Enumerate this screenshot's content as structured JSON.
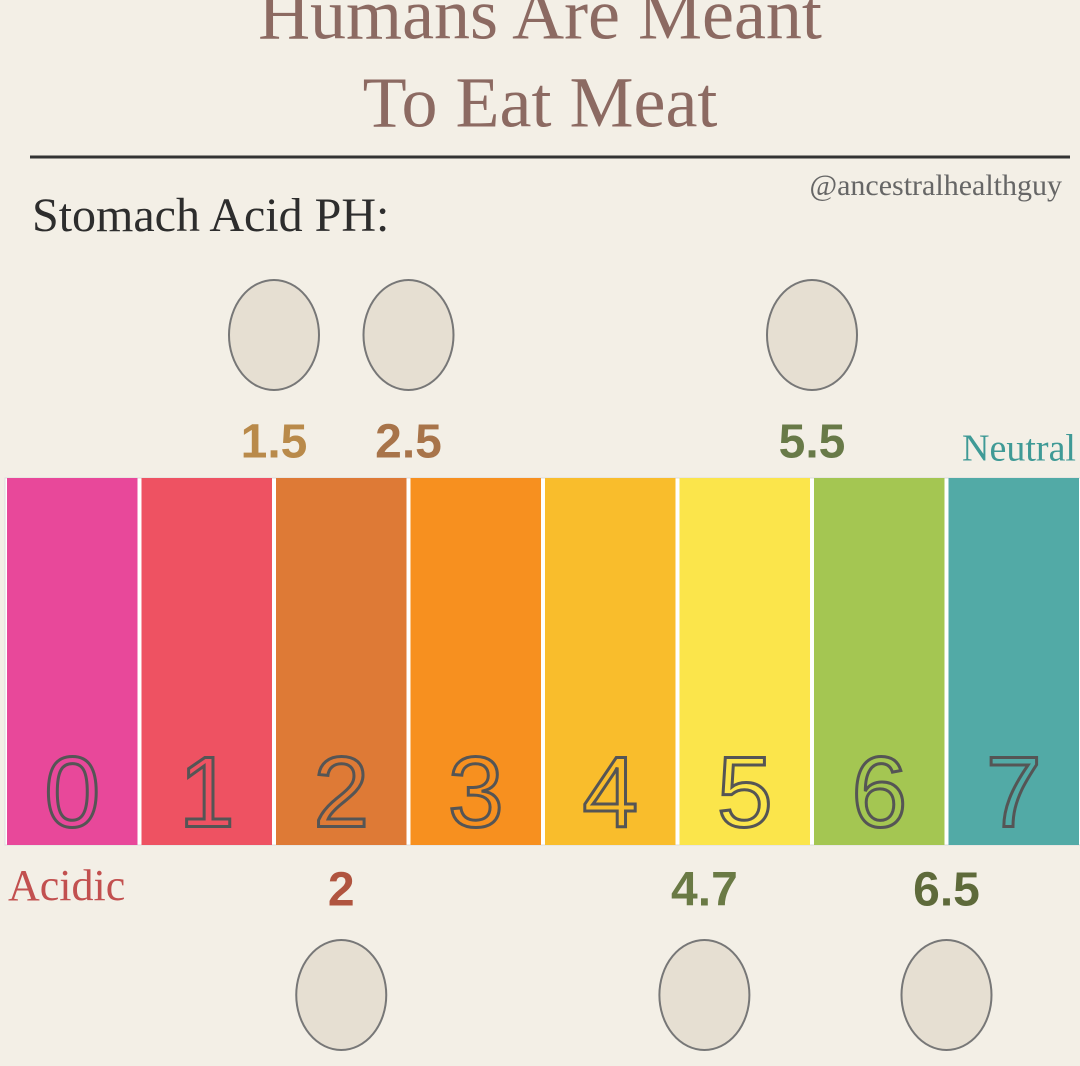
{
  "title": [
    "Humans Are Meant",
    "To Eat Meat"
  ],
  "handle": "@ancestralhealthguy",
  "subtitle": "Stomach Acid PH:",
  "scale": {
    "labels": [
      "0",
      "1",
      "2",
      "3",
      "4",
      "5",
      "6",
      "7"
    ],
    "colors": [
      "#e8489a",
      "#ee5262",
      "#de7a36",
      "#f7901f",
      "#f9bd2c",
      "#fbe54b",
      "#a4c652",
      "#52aaa6"
    ],
    "left_label": "Acidic",
    "right_label": "Neutral"
  },
  "markers_above": [
    {
      "value": 1.5,
      "color": "#b98a4a"
    },
    {
      "value": 2.5,
      "color": "#a8744a"
    },
    {
      "value": 5.5,
      "color": "#687a48"
    }
  ],
  "markers_below": [
    {
      "value": 2,
      "color": "#b0543f"
    },
    {
      "value": 4.7,
      "color": "#6a7a45"
    },
    {
      "value": 6.5,
      "color": "#5e6a3a"
    }
  ]
}
